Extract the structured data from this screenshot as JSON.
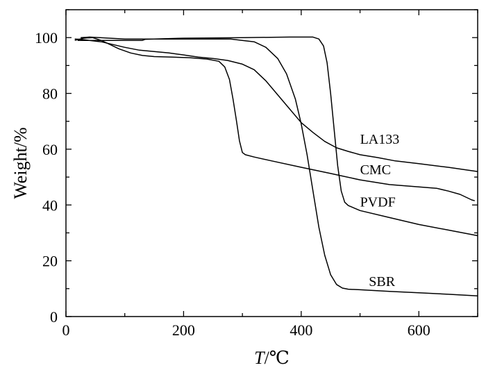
{
  "chart_data": {
    "type": "line",
    "xlabel_var": "T",
    "xlabel_unit": "/℃",
    "ylabel": "Weight/%",
    "xlim": [
      0,
      700
    ],
    "ylim": [
      0,
      110
    ],
    "xticks": [
      0,
      200,
      400,
      600
    ],
    "yticks": [
      0,
      20,
      40,
      60,
      80,
      100
    ],
    "grid": false,
    "legend": "inline labels",
    "series": [
      {
        "name": "LA133",
        "label_at": [
          500,
          62
        ],
        "points": [
          [
            15,
            99.5
          ],
          [
            25,
            99.4
          ],
          [
            40,
            99.0
          ],
          [
            60,
            98.5
          ],
          [
            80,
            97.5
          ],
          [
            100,
            96.5
          ],
          [
            125,
            95.5
          ],
          [
            150,
            95.0
          ],
          [
            175,
            94.5
          ],
          [
            200,
            93.8
          ],
          [
            225,
            93.0
          ],
          [
            250,
            92.5
          ],
          [
            275,
            91.8
          ],
          [
            300,
            90.5
          ],
          [
            320,
            88.5
          ],
          [
            340,
            84.5
          ],
          [
            360,
            79.5
          ],
          [
            380,
            74.5
          ],
          [
            400,
            69.5
          ],
          [
            420,
            66.0
          ],
          [
            440,
            62.8
          ],
          [
            460,
            60.5
          ],
          [
            480,
            59.2
          ],
          [
            500,
            58.0
          ],
          [
            530,
            57.0
          ],
          [
            560,
            55.8
          ],
          [
            600,
            54.8
          ],
          [
            650,
            53.5
          ],
          [
            700,
            52.0
          ]
        ]
      },
      {
        "name": "CMC",
        "label_at": [
          500,
          51
        ],
        "points": [
          [
            15,
            99.0
          ],
          [
            30,
            99.8
          ],
          [
            45,
            100.0
          ],
          [
            60,
            99.0
          ],
          [
            75,
            97.5
          ],
          [
            90,
            96.0
          ],
          [
            110,
            94.5
          ],
          [
            130,
            93.6
          ],
          [
            150,
            93.2
          ],
          [
            180,
            93.0
          ],
          [
            210,
            92.8
          ],
          [
            240,
            92.3
          ],
          [
            260,
            91.5
          ],
          [
            270,
            89.5
          ],
          [
            278,
            85.0
          ],
          [
            284,
            78.0
          ],
          [
            290,
            70.0
          ],
          [
            295,
            63.0
          ],
          [
            300,
            58.8
          ],
          [
            305,
            58.0
          ],
          [
            320,
            57.2
          ],
          [
            350,
            55.8
          ],
          [
            400,
            53.5
          ],
          [
            450,
            51.3
          ],
          [
            500,
            49.0
          ],
          [
            550,
            47.3
          ],
          [
            600,
            46.5
          ],
          [
            630,
            46.0
          ],
          [
            650,
            45.0
          ],
          [
            670,
            43.8
          ],
          [
            690,
            41.8
          ],
          [
            695,
            41.5
          ]
        ]
      },
      {
        "name": "PVDF",
        "label_at": [
          500,
          39.5
        ],
        "points": [
          [
            20,
            99.0
          ],
          [
            130,
            99.0
          ],
          [
            135,
            99.4
          ],
          [
            200,
            99.8
          ],
          [
            300,
            100.0
          ],
          [
            380,
            100.2
          ],
          [
            420,
            100.2
          ],
          [
            430,
            99.5
          ],
          [
            438,
            97.0
          ],
          [
            444,
            91.0
          ],
          [
            450,
            80.0
          ],
          [
            456,
            67.0
          ],
          [
            462,
            54.0
          ],
          [
            468,
            45.0
          ],
          [
            474,
            41.0
          ],
          [
            480,
            39.8
          ],
          [
            500,
            38.0
          ],
          [
            550,
            35.5
          ],
          [
            600,
            33.0
          ],
          [
            650,
            31.0
          ],
          [
            700,
            29.0
          ]
        ]
      },
      {
        "name": "SBR",
        "label_at": [
          515,
          11
        ],
        "points": [
          [
            25,
            100.0
          ],
          [
            40,
            100.2
          ],
          [
            100,
            99.5
          ],
          [
            200,
            99.5
          ],
          [
            280,
            99.5
          ],
          [
            320,
            98.5
          ],
          [
            340,
            96.5
          ],
          [
            360,
            92.5
          ],
          [
            375,
            87.0
          ],
          [
            390,
            78.0
          ],
          [
            400,
            69.0
          ],
          [
            410,
            58.0
          ],
          [
            420,
            45.0
          ],
          [
            430,
            32.0
          ],
          [
            440,
            22.0
          ],
          [
            450,
            15.0
          ],
          [
            460,
            11.5
          ],
          [
            470,
            10.2
          ],
          [
            480,
            9.8
          ],
          [
            500,
            9.6
          ],
          [
            550,
            9.0
          ],
          [
            600,
            8.5
          ],
          [
            650,
            8.0
          ],
          [
            700,
            7.4
          ]
        ]
      }
    ]
  }
}
